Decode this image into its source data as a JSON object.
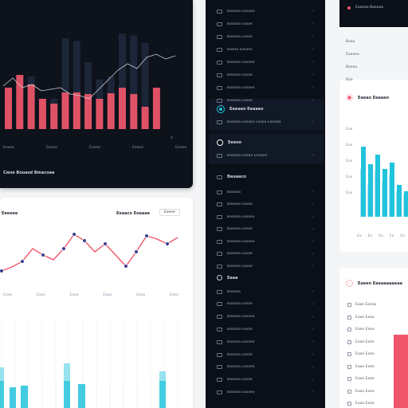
{
  "theme": {
    "accent_red": "#f0566a",
    "accent_cyan": "#22c3dc",
    "dark_bg": "#0d121b",
    "sidebar_bg": "#0a0f18"
  },
  "top_chart": {
    "footer_label": "Cwse Bouasd Bmacoaa",
    "ticks": [
      "Eeeee",
      "Eeeee",
      "Eeeee",
      "Eeeee",
      "Eeeee"
    ],
    "marker": "x"
  },
  "line_card": {
    "title": "Eeeeee",
    "filter_label": "Eeaaco Eoaaae",
    "button_label": "Eeeee",
    "ticks": [
      "Eaeo",
      "Eaeo",
      "Eaeo",
      "Eaeo",
      "Eaeo",
      "Eaeo"
    ]
  },
  "sidebar": {
    "top_items": [
      "Baeaaa Easaeo",
      "Baeaaa Easae",
      "Baeaaa Easae",
      "Baeaa Easaeo",
      "Baeaaa Easaeo",
      "Baeaaa Easae",
      "Baeaaa Easaeo",
      "Baeaaa Easae"
    ],
    "section_a_title": "Eeeaeo Eeaaeo",
    "section_a_sub": "Baeaao Easaeo Easae Eaeaaa",
    "section_b_title": "Eeeeo",
    "section_b_sub": "Baeaao Eeaaa Eeaaeo",
    "section_c_title": "Bauaaco",
    "section_c_items": [
      "Baeaaa",
      "Baeaaa Easae",
      "Baeaaa Easaeo",
      "Baeaaa Easae",
      "Baeaaa Easaeo",
      "Baeaaa Easae",
      "Baeaaa Easae"
    ],
    "section_d_title": "Eaaa",
    "section_d_items": [
      "Baeaaa",
      "Baeaaa Easae",
      "Baeaaa Easaeo",
      "Baeaaa Easae",
      "Baeaaa Easaeo",
      "Baeaaa Easae",
      "Baeaaa Easaeo",
      "Baeaaa Easae",
      "Baeaaa Easaeo"
    ]
  },
  "right_panel": {
    "top_item": "Eaaeoa Baeaaa",
    "meta_rows": [
      "Baaa",
      "Eaaaea",
      "Baeaa",
      "Baa"
    ],
    "card_title": "Eaeao Eeaaeo",
    "y_ticks": [
      "Eaa",
      "Eaa",
      "Eaa",
      "Eaa",
      "Eaa"
    ],
    "x_ticks": [
      "Ea",
      "Ea",
      "Ea",
      "Ea",
      "Ea"
    ],
    "card2_title": "Eaeeo Eaeaaaaaeaa",
    "card2_items": [
      "Eaae Eaeaa",
      "Eaae Eaea",
      "Eaae Eaea",
      "Eaae Eaea",
      "Eaae Eaea",
      "Eaae Eaea",
      "Eaae Eaea",
      "Eaae Eaea",
      "Eaae Eaea"
    ]
  },
  "chart_data": [
    {
      "type": "bar",
      "series": [
        {
          "values": [
            52,
            68,
            56,
            38,
            32,
            46,
            46,
            44,
            38,
            45,
            52,
            44,
            28,
            52
          ]
        },
        {
          "values": [
            28,
            8,
            55,
            12,
            32,
            95,
            92,
            70,
            52,
            55,
            100,
            98,
            90,
            18
          ]
        }
      ],
      "overlay_line": [
        62,
        72,
        60,
        64,
        56,
        58,
        60,
        52,
        50,
        46,
        58,
        70,
        82,
        90,
        84,
        98,
        102,
        96,
        100
      ]
    },
    {
      "type": "line",
      "series": [
        {
          "values": [
            10,
            15,
            22,
            38,
            30,
            24,
            38,
            56,
            48,
            34,
            44,
            30,
            16,
            34,
            54,
            50,
            44,
            52
          ]
        }
      ],
      "ylim": [
        0,
        70
      ]
    },
    {
      "type": "bar",
      "series": [
        {
          "values": [
            78,
            56,
            68,
            50,
            58,
            30,
            22
          ]
        },
        {
          "values": [
            50,
            30,
            48,
            34,
            42,
            22,
            18
          ]
        }
      ]
    },
    {
      "type": "bar",
      "series": [
        {
          "values": [
            45,
            20,
            40,
            10,
            25,
            45,
            35,
            50,
            15,
            30,
            20,
            60,
            40,
            25
          ]
        }
      ]
    }
  ]
}
